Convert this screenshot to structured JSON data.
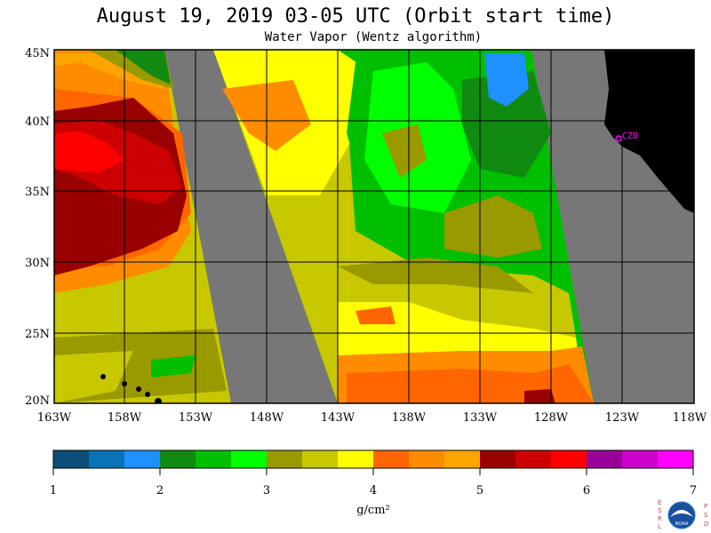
{
  "title": "August 19, 2019  03-05 UTC  (Orbit start time)",
  "subtitle": "Water Vapor (Wentz algorithm)",
  "lat_labels": [
    "45N",
    "40N",
    "35N",
    "30N",
    "25N",
    "20N"
  ],
  "lon_labels": [
    "163W",
    "158W",
    "153W",
    "148W",
    "143W",
    "138W",
    "133W",
    "128W",
    "123W",
    "118W"
  ],
  "station_label": "CZD",
  "colorbar": {
    "unit": "g/cm²",
    "ticks": [
      "1",
      "2",
      "3",
      "4",
      "5",
      "6",
      "7"
    ],
    "colors": [
      "#0b4f7a",
      "#0a73b8",
      "#1e90ff",
      "#108a10",
      "#00bf00",
      "#00ff00",
      "#999900",
      "#c8c800",
      "#ffff00",
      "#ff6600",
      "#ff8c00",
      "#ffa500",
      "#990000",
      "#cc0000",
      "#ff0000",
      "#990099",
      "#cc00cc",
      "#ff00ff"
    ]
  },
  "legend_colors": {
    "no_data": "#777777",
    "land": "#000000",
    "station": "#ff00ff"
  },
  "logo": {
    "left_letters": [
      "E",
      "S",
      "R",
      "L"
    ],
    "right_letters": [
      "P",
      "S",
      "D"
    ],
    "center": "NOAA"
  }
}
